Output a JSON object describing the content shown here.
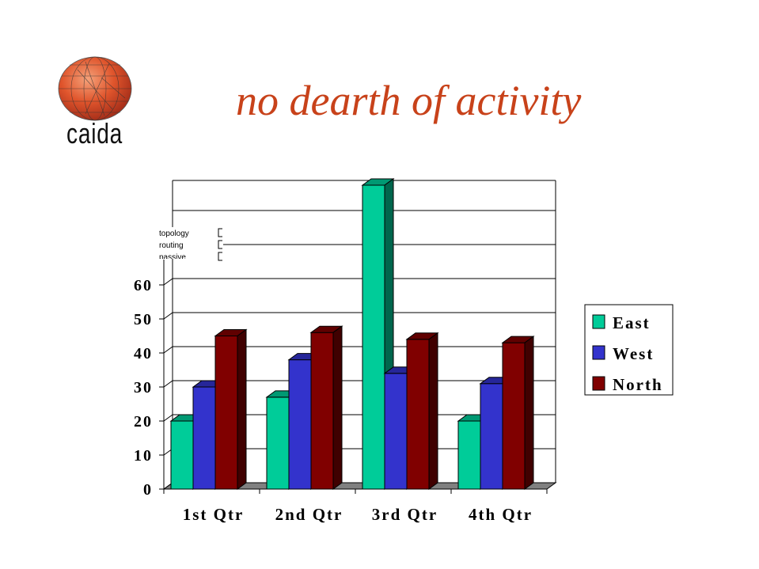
{
  "slide": {
    "title": "no dearth of activity",
    "logo_text": "caida"
  },
  "fragment_labels": [
    "topology",
    "routing",
    "passive"
  ],
  "colors": {
    "title": "#c8421a",
    "east": "#00cc99",
    "west": "#3333cc",
    "north": "#800000",
    "floor": "#808080"
  },
  "chart_data": {
    "type": "bar",
    "categories": [
      "1st Qtr",
      "2nd Qtr",
      "3rd Qtr",
      "4th Qtr"
    ],
    "series": [
      {
        "name": "East",
        "values": [
          20,
          27,
          90,
          20
        ]
      },
      {
        "name": "West",
        "values": [
          30,
          38,
          34,
          31
        ]
      },
      {
        "name": "North",
        "values": [
          45,
          46,
          44,
          43
        ]
      }
    ],
    "y_ticks": [
      "0",
      "10",
      "20",
      "30",
      "40",
      "50",
      "60"
    ],
    "ylim": [
      0,
      90
    ],
    "grid": true,
    "legend_position": "right",
    "xlabel": "",
    "ylabel": ""
  }
}
